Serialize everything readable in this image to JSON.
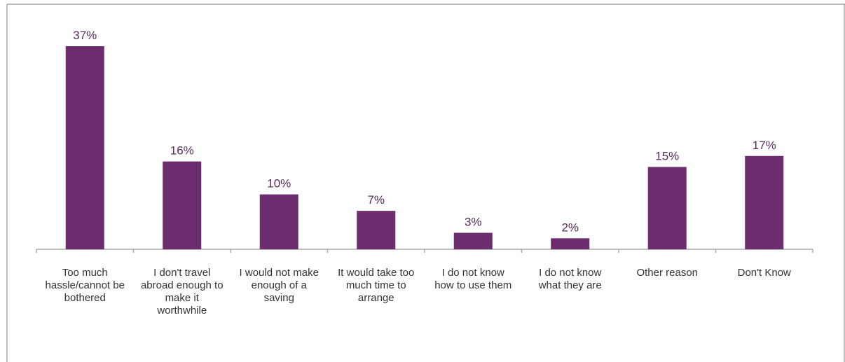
{
  "chart_data": {
    "type": "bar",
    "title": "",
    "xlabel": "",
    "ylabel": "",
    "ylim": [
      0,
      40
    ],
    "grid": false,
    "categories": [
      "Too much hassle/cannot be bothered",
      "I don't travel abroad enough to make it worthwhile",
      "I would not make enough of a saving",
      "It would take too much time to arrange",
      "I do not know how to use them",
      "I do not know what they are",
      "Other reason",
      "Don't Know"
    ],
    "values": [
      37,
      16,
      10,
      7,
      3,
      2,
      15,
      17
    ],
    "value_labels": [
      "37%",
      "16%",
      "10%",
      "7%",
      "3%",
      "2%",
      "15%",
      "17%"
    ],
    "bar_color": "#6b2d6e",
    "frame_color": "#a8a8a8"
  }
}
